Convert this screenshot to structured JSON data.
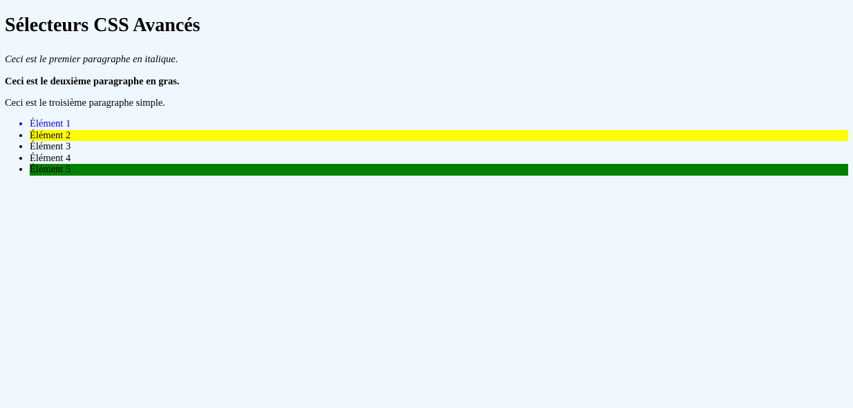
{
  "page": {
    "title": "Sélecteurs CSS Avancés",
    "background_color": "#f0f8ff"
  },
  "paragraphs": [
    {
      "text": "Ceci est le premier paragraphe en italique.",
      "style": "italic"
    },
    {
      "text": "Ceci est le deuxième paragraphe en gras.",
      "style": "bold"
    },
    {
      "text": "Ceci est le troisième paragraphe simple.",
      "style": "normal"
    }
  ],
  "list": {
    "items": [
      {
        "label": "Élément 1",
        "color": "#0000ff",
        "background": ""
      },
      {
        "label": "Élément 2",
        "color": "#000000",
        "background": "#ffff00"
      },
      {
        "label": "Élément 3",
        "color": "#000000",
        "background": ""
      },
      {
        "label": "Élément 4",
        "color": "#000000",
        "background": ""
      },
      {
        "label": "Élément 5",
        "color": "#000000",
        "background": "#008000"
      }
    ]
  }
}
